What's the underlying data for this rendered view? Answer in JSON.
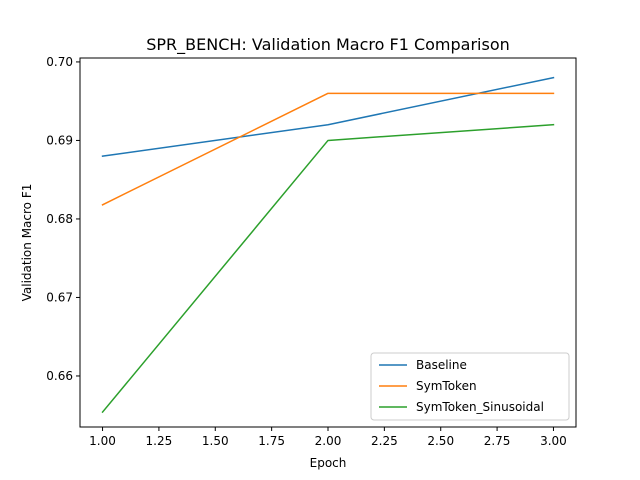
{
  "chart_data": {
    "type": "line",
    "title": "SPR_BENCH: Validation Macro F1 Comparison",
    "xlabel": "Epoch",
    "ylabel": "Validation Macro F1",
    "x": [
      1.0,
      2.0,
      3.0
    ],
    "xlim": [
      0.9,
      3.1
    ],
    "ylim": [
      0.6535,
      0.7005
    ],
    "x_ticks": [
      {
        "value": 1.0,
        "label": "1.00"
      },
      {
        "value": 1.25,
        "label": "1.25"
      },
      {
        "value": 1.5,
        "label": "1.50"
      },
      {
        "value": 1.75,
        "label": "1.75"
      },
      {
        "value": 2.0,
        "label": "2.00"
      },
      {
        "value": 2.25,
        "label": "2.25"
      },
      {
        "value": 2.5,
        "label": "2.50"
      },
      {
        "value": 2.75,
        "label": "2.75"
      },
      {
        "value": 3.0,
        "label": "3.00"
      }
    ],
    "y_ticks": [
      {
        "value": 0.66,
        "label": "0.66"
      },
      {
        "value": 0.67,
        "label": "0.67"
      },
      {
        "value": 0.68,
        "label": "0.68"
      },
      {
        "value": 0.69,
        "label": "0.69"
      },
      {
        "value": 0.7,
        "label": "0.70"
      }
    ],
    "grid": false,
    "legend_position": "lower-right",
    "series": [
      {
        "name": "Baseline",
        "color": "#1f77b4",
        "values": [
          0.688,
          0.692,
          0.698
        ]
      },
      {
        "name": "SymToken",
        "color": "#ff7f0e",
        "values": [
          0.6818,
          0.696,
          0.696
        ]
      },
      {
        "name": "SymToken_Sinusoidal",
        "color": "#2ca02c",
        "values": [
          0.6554,
          0.69,
          0.692
        ]
      }
    ]
  }
}
